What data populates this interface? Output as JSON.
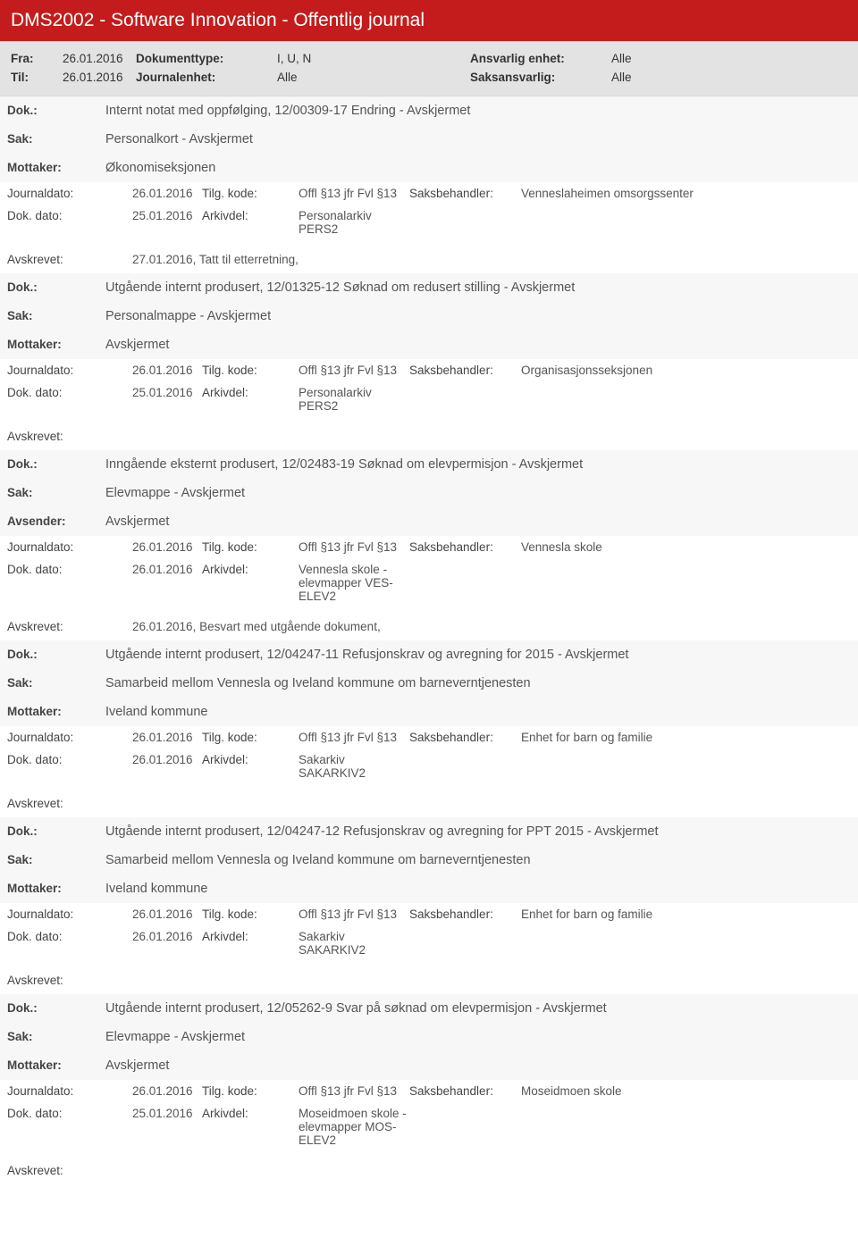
{
  "header": {
    "title": "DMS2002 - Software Innovation - Offentlig journal"
  },
  "filters": {
    "fra_label": "Fra:",
    "fra_value": "26.01.2016",
    "til_label": "Til:",
    "til_value": "26.01.2016",
    "doktype_label": "Dokumenttype:",
    "doktype_value": "I, U, N",
    "journalenhet_label": "Journalenhet:",
    "journalenhet_value": "Alle",
    "ansvarlig_label": "Ansvarlig enhet:",
    "ansvarlig_value": "Alle",
    "saksansvarlig_label": "Saksansvarlig:",
    "saksansvarlig_value": "Alle"
  },
  "labels": {
    "dok": "Dok.:",
    "sak": "Sak:",
    "mottaker": "Mottaker:",
    "avsender": "Avsender:",
    "journaldato": "Journaldato:",
    "dokdato": "Dok. dato:",
    "tilgkode": "Tilg. kode:",
    "arkivdel": "Arkivdel:",
    "saksbehandler": "Saksbehandler:",
    "avskrevet": "Avskrevet:"
  },
  "entries": [
    {
      "dok": "Internt notat med oppfølging, 12/00309-17 Endring - Avskjermet",
      "sak": "Personalkort - Avskjermet",
      "party_label": "Mottaker:",
      "party": "Økonomiseksjonen",
      "journaldato": "26.01.2016",
      "tilgkode": "Offl §13 jfr Fvl §13",
      "saksbehandler": "Venneslaheimen omsorgssenter",
      "dokdato": "25.01.2016",
      "arkivdel": "Personalarkiv PERS2",
      "avskrevet": "27.01.2016, Tatt til etterretning,"
    },
    {
      "dok": "Utgående internt produsert, 12/01325-12 Søknad om redusert stilling - Avskjermet",
      "sak": "Personalmappe - Avskjermet",
      "party_label": "Mottaker:",
      "party": "Avskjermet",
      "journaldato": "26.01.2016",
      "tilgkode": "Offl §13 jfr Fvl §13",
      "saksbehandler": "Organisasjonsseksjonen",
      "dokdato": "25.01.2016",
      "arkivdel": "Personalarkiv PERS2",
      "avskrevet": ""
    },
    {
      "dok": "Inngående eksternt produsert, 12/02483-19 Søknad om elevpermisjon - Avskjermet",
      "sak": "Elevmappe - Avskjermet",
      "party_label": "Avsender:",
      "party": "Avskjermet",
      "journaldato": "26.01.2016",
      "tilgkode": "Offl §13 jfr Fvl §13",
      "saksbehandler": "Vennesla skole",
      "dokdato": "26.01.2016",
      "arkivdel": "Vennesla skole - elevmapper VES-ELEV2",
      "avskrevet": "26.01.2016, Besvart med utgående dokument,"
    },
    {
      "dok": "Utgående internt produsert, 12/04247-11 Refusjonskrav og avregning for 2015 - Avskjermet",
      "sak": "Samarbeid mellom Vennesla og Iveland kommune om barneverntjenesten",
      "party_label": "Mottaker:",
      "party": "Iveland kommune",
      "journaldato": "26.01.2016",
      "tilgkode": "Offl §13 jfr Fvl §13",
      "saksbehandler": "Enhet for barn og familie",
      "dokdato": "26.01.2016",
      "arkivdel": "Sakarkiv SAKARKIV2",
      "avskrevet": ""
    },
    {
      "dok": "Utgående internt produsert, 12/04247-12 Refusjonskrav og avregning for PPT 2015 - Avskjermet",
      "sak": "Samarbeid mellom Vennesla og Iveland kommune om barneverntjenesten",
      "party_label": "Mottaker:",
      "party": "Iveland kommune",
      "journaldato": "26.01.2016",
      "tilgkode": "Offl §13 jfr Fvl §13",
      "saksbehandler": "Enhet for barn og familie",
      "dokdato": "26.01.2016",
      "arkivdel": "Sakarkiv SAKARKIV2",
      "avskrevet": ""
    },
    {
      "dok": "Utgående internt produsert, 12/05262-9 Svar på søknad om elevpermisjon - Avskjermet",
      "sak": "Elevmappe - Avskjermet",
      "party_label": "Mottaker:",
      "party": "Avskjermet",
      "journaldato": "26.01.2016",
      "tilgkode": "Offl §13 jfr Fvl §13",
      "saksbehandler": "Moseidmoen skole",
      "dokdato": "25.01.2016",
      "arkivdel": "Moseidmoen skole - elevmapper MOS-ELEV2",
      "avskrevet": ""
    }
  ],
  "style": {
    "header_bg": "#c41c1c",
    "filter_bg": "#e3e3e3",
    "alt_bg": "#f7f7f7",
    "text_color": "#555555",
    "label_color": "#444444"
  }
}
